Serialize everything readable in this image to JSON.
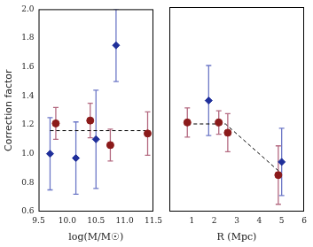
{
  "chart_data": [
    {
      "type": "scatter",
      "x_label": "log(M/M☉)",
      "y_label": "Correction factor",
      "xlim": [
        9.5,
        11.5
      ],
      "xticks": [
        9.5,
        {
          "value": 10.0,
          "label": "10.0"
        },
        10.5,
        {
          "value": 11.0,
          "label": "11.0"
        },
        11.5
      ],
      "ylim": [
        0.6,
        2.0
      ],
      "yticks": [
        0.6,
        0.8,
        {
          "value": 1.0,
          "label": "1.0"
        },
        1.2,
        1.4,
        1.6,
        1.8,
        {
          "value": 2.0,
          "label": "2.0"
        }
      ],
      "grid": false,
      "series": [
        {
          "type": "line",
          "line_style": "dashed",
          "color": "#000000",
          "x": [
            9.7,
            11.4
          ],
          "values": [
            1.16,
            1.16
          ]
        },
        {
          "color": "#1f2f9a",
          "marker": "diamond",
          "x": [
            9.7,
            10.15,
            10.5,
            10.85
          ],
          "values": [
            1.0,
            0.97,
            1.1,
            1.75
          ],
          "errors": [
            0.25,
            0.25,
            0.34,
            0.25
          ]
        },
        {
          "color": "#8b1a1a",
          "marker": "circle",
          "x": [
            9.8,
            10.4,
            10.75,
            11.4
          ],
          "values": [
            1.21,
            1.23,
            1.06,
            1.14
          ],
          "errors": [
            0.11,
            0.12,
            0.11,
            0.15
          ]
        }
      ]
    },
    {
      "type": "scatter",
      "x_label": "R (Mpc)",
      "xlim": [
        0,
        6
      ],
      "xticks": [
        1,
        2,
        3,
        4,
        5,
        6
      ],
      "ylim": [
        0.6,
        2.0
      ],
      "yticks": [
        0.6,
        0.8,
        1.0,
        1.2,
        1.4,
        1.6,
        1.8,
        2.0
      ],
      "tick_labels": "x",
      "grid": false,
      "series": [
        {
          "type": "line",
          "line_style": "dashed",
          "color": "#000000",
          "x": [
            0.8,
            2.5,
            4.85
          ],
          "values": [
            1.2,
            1.2,
            0.88
          ]
        },
        {
          "color": "#8b1a1a",
          "marker": "circle",
          "x": [
            0.8,
            2.2,
            2.6,
            4.85
          ],
          "values": [
            1.21,
            1.21,
            1.14,
            0.85
          ],
          "errors": [
            0.1,
            0.08,
            0.13,
            0.2
          ]
        },
        {
          "color": "#1f2f9a",
          "marker": "diamond",
          "x": [
            1.75,
            5.0
          ],
          "values": [
            1.36,
            0.94
          ],
          "errors": [
            0.24,
            0.23
          ]
        }
      ]
    }
  ]
}
